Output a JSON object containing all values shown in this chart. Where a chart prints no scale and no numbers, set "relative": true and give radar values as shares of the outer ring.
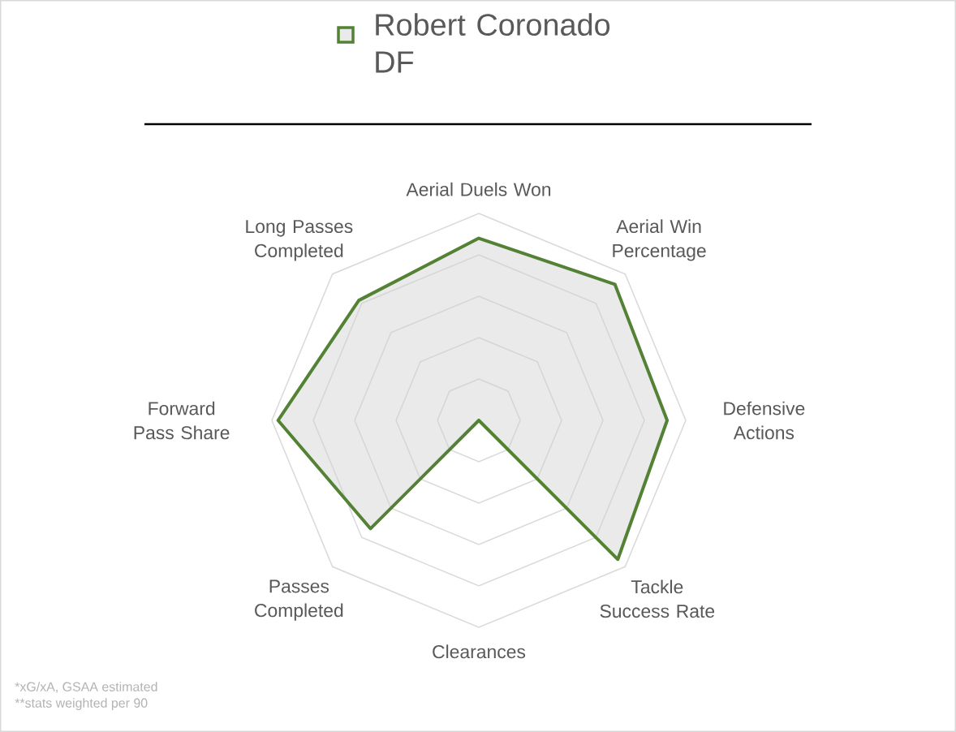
{
  "chart_data": {
    "type": "radar",
    "relative": true,
    "grid": true,
    "legend": "top",
    "categories": [
      "Aerial Duels Won",
      "Aerial Win Percentage",
      "Defensive Actions",
      "Tackle Success Rate",
      "Clearances",
      "Passes Completed",
      "Forward Pass Share",
      "Long Passes Completed"
    ],
    "series": [
      {
        "name": "Robert Coronado DF",
        "color": "#548235",
        "values": [
          0.88,
          0.93,
          0.91,
          0.95,
          0,
          0.74,
          0.97,
          0.82
        ]
      }
    ],
    "annotations": [
      "*xG/xA, GSAA estimated",
      "**stats weighted per 90"
    ]
  }
}
